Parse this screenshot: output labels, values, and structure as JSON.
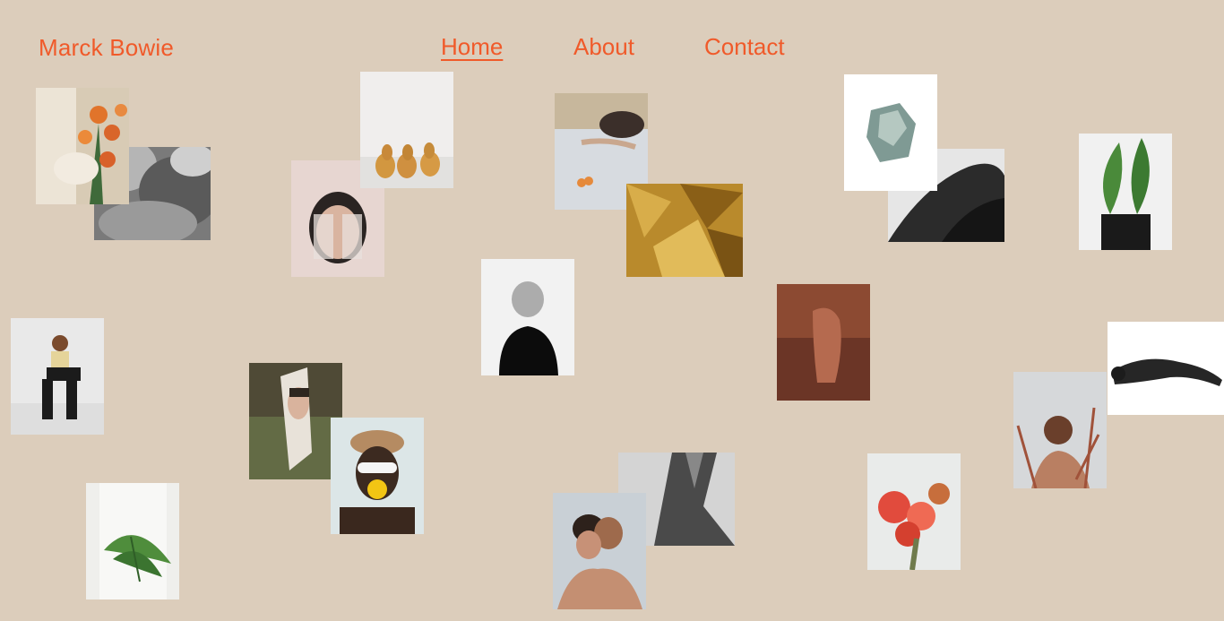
{
  "brand": {
    "name": "Marck Bowie"
  },
  "nav": {
    "items": [
      {
        "label": "Home",
        "active": true
      },
      {
        "label": "About",
        "active": false
      },
      {
        "label": "Contact",
        "active": false
      }
    ]
  },
  "colors": {
    "background": "#dccdbb",
    "accent": "#f05a2a"
  }
}
